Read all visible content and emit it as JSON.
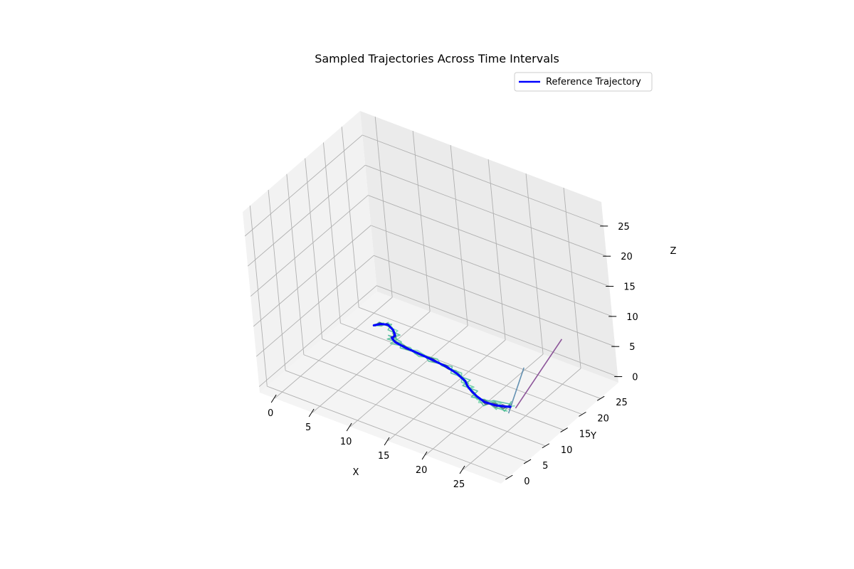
{
  "chart_data": {
    "type": "line3d",
    "title": "Sampled Trajectories Across Time Intervals",
    "xlabel": "X",
    "ylabel": "Y",
    "zlabel": "Z",
    "xlim": [
      -2,
      30
    ],
    "ylim": [
      -2,
      30
    ],
    "zlim": [
      -1,
      29
    ],
    "xticks": [
      0,
      5,
      10,
      15,
      20,
      25
    ],
    "yticks": [
      0,
      5,
      10,
      15,
      20,
      25
    ],
    "zticks": [
      0,
      5,
      10,
      15,
      20,
      25
    ],
    "grid": true,
    "legend": {
      "position": "top-right",
      "entries": [
        {
          "label": "Reference Trajectory",
          "color": "#0000ff"
        }
      ]
    },
    "reference": {
      "name": "Reference Trajectory",
      "color": "#0000ff",
      "x": [
        2.0,
        2.5,
        3.3,
        4.4,
        5.2,
        5.2,
        6.0,
        7.5,
        9.5,
        11.5,
        13.5,
        15.2,
        16.8,
        17.6,
        18.5,
        19.6,
        21.0,
        22.3,
        23.3,
        24.0
      ],
      "y": [
        21.0,
        21.8,
        22.2,
        21.4,
        20.3,
        19.4,
        18.7,
        18.3,
        18.0,
        17.7,
        17.3,
        16.6,
        15.6,
        14.6,
        13.8,
        13.0,
        12.3,
        12.4,
        12.8,
        13.2
      ],
      "z": [
        0.0,
        0.05,
        0.1,
        0.15,
        0.2,
        0.25,
        0.3,
        0.35,
        0.4,
        0.45,
        0.5,
        0.55,
        0.6,
        0.65,
        0.7,
        0.75,
        0.8,
        0.85,
        0.9,
        0.95
      ]
    },
    "samples": [
      {
        "color": "#55c89b",
        "offsets": [
          [
            0.0,
            0.0
          ],
          [
            0.3,
            -0.4
          ],
          [
            -0.2,
            0.5
          ],
          [
            0.4,
            -0.6
          ],
          [
            -0.5,
            0.3
          ],
          [
            0.6,
            0.2
          ],
          [
            -0.3,
            -0.7
          ],
          [
            0.5,
            0.4
          ],
          [
            -0.4,
            -0.3
          ],
          [
            0.3,
            0.6
          ],
          [
            -0.6,
            -0.2
          ],
          [
            0.4,
            0.5
          ],
          [
            -0.2,
            -0.6
          ],
          [
            0.7,
            0.3
          ],
          [
            -0.5,
            0.4
          ],
          [
            0.4,
            -0.7
          ],
          [
            -0.3,
            0.6
          ],
          [
            0.6,
            -0.8
          ],
          [
            -0.4,
            -0.9
          ],
          [
            0.2,
            -1.2
          ]
        ]
      },
      {
        "color": "#3fb596",
        "offsets": [
          [
            0.1,
            0.2
          ],
          [
            -0.3,
            0.3
          ],
          [
            0.4,
            -0.2
          ],
          [
            -0.4,
            0.5
          ],
          [
            0.3,
            -0.4
          ],
          [
            -0.6,
            0.3
          ],
          [
            0.5,
            0.6
          ],
          [
            -0.4,
            -0.5
          ],
          [
            0.6,
            0.2
          ],
          [
            -0.3,
            -0.6
          ],
          [
            0.5,
            0.5
          ],
          [
            -0.6,
            -0.4
          ],
          [
            0.4,
            0.6
          ],
          [
            -0.5,
            -0.3
          ],
          [
            0.6,
            0.5
          ],
          [
            -0.4,
            -0.6
          ],
          [
            0.5,
            0.7
          ],
          [
            -0.6,
            0.9
          ],
          [
            0.5,
            1.1
          ],
          [
            -0.3,
            0.8
          ]
        ]
      },
      {
        "color": "#6ad2a8",
        "offsets": [
          [
            -0.1,
            0.1
          ],
          [
            0.2,
            0.5
          ],
          [
            -0.4,
            -0.3
          ],
          [
            0.5,
            0.2
          ],
          [
            -0.3,
            0.6
          ],
          [
            0.4,
            -0.5
          ],
          [
            -0.6,
            0.4
          ],
          [
            0.3,
            -0.4
          ],
          [
            -0.5,
            0.6
          ],
          [
            0.6,
            -0.3
          ],
          [
            -0.4,
            0.4
          ],
          [
            0.5,
            -0.5
          ],
          [
            -0.6,
            0.3
          ],
          [
            0.4,
            -0.6
          ],
          [
            -0.3,
            0.5
          ],
          [
            0.6,
            -0.4
          ],
          [
            -0.5,
            -0.6
          ],
          [
            0.4,
            1.0
          ],
          [
            -0.6,
            -1.1
          ],
          [
            0.3,
            0.6
          ]
        ]
      },
      {
        "color": "#48b891",
        "offsets": [
          [
            0.2,
            -0.1
          ],
          [
            -0.2,
            -0.3
          ],
          [
            0.3,
            0.4
          ],
          [
            -0.5,
            -0.4
          ],
          [
            0.4,
            0.5
          ],
          [
            -0.3,
            -0.6
          ],
          [
            0.6,
            0.3
          ],
          [
            -0.5,
            0.5
          ],
          [
            0.3,
            -0.6
          ],
          [
            -0.6,
            0.4
          ],
          [
            0.5,
            -0.4
          ],
          [
            -0.4,
            0.6
          ],
          [
            0.6,
            -0.3
          ],
          [
            -0.5,
            0.5
          ],
          [
            0.4,
            -0.5
          ],
          [
            -0.6,
            0.6
          ],
          [
            0.3,
            -0.9
          ],
          [
            -0.4,
            0.8
          ],
          [
            0.6,
            -1.0
          ],
          [
            -0.5,
            1.3
          ]
        ]
      },
      {
        "color": "#555577",
        "offsets": [
          [
            0.0,
            0.1
          ],
          [
            0.2,
            -0.2
          ],
          [
            -0.2,
            0.2
          ],
          [
            0.2,
            -0.3
          ],
          [
            -0.3,
            0.2
          ],
          [
            0.3,
            -0.2
          ],
          [
            -0.2,
            0.3
          ],
          [
            0.3,
            -0.3
          ],
          [
            -0.3,
            0.2
          ],
          [
            0.2,
            -0.3
          ],
          [
            -0.2,
            0.3
          ],
          [
            0.3,
            -0.2
          ],
          [
            -0.3,
            0.3
          ],
          [
            0.2,
            -0.2
          ],
          [
            -0.2,
            0.3
          ],
          [
            0.3,
            -0.3
          ],
          [
            -0.2,
            0.4
          ],
          [
            0.3,
            -0.4
          ],
          [
            -0.3,
            0.3
          ],
          [
            0.2,
            -0.3
          ]
        ]
      },
      {
        "color": "#444466",
        "offsets": [
          [
            0.1,
            0.0
          ],
          [
            -0.2,
            0.2
          ],
          [
            0.2,
            -0.2
          ],
          [
            -0.3,
            0.2
          ],
          [
            0.2,
            -0.3
          ],
          [
            -0.2,
            0.2
          ],
          [
            0.3,
            -0.2
          ],
          [
            -0.3,
            0.3
          ],
          [
            0.2,
            -0.2
          ],
          [
            -0.2,
            0.3
          ],
          [
            0.3,
            -0.3
          ],
          [
            -0.2,
            0.2
          ],
          [
            0.3,
            -0.3
          ],
          [
            -0.3,
            0.2
          ],
          [
            0.2,
            -0.3
          ],
          [
            -0.3,
            0.3
          ],
          [
            0.3,
            -0.4
          ],
          [
            -0.2,
            0.4
          ],
          [
            0.2,
            -0.5
          ],
          [
            -0.2,
            0.4
          ]
        ]
      }
    ],
    "outliers": [
      {
        "color": "#7a3a8a",
        "x": [
          24.3,
          24.3
        ],
        "y": [
          13.9,
          27.2
        ],
        "z": [
          0.5,
          5.0
        ]
      },
      {
        "color": "#4a7fa6",
        "x": [
          24.2,
          20.8
        ],
        "y": [
          12.2,
          23.4
        ],
        "z": [
          0.5,
          0.6
        ]
      }
    ]
  }
}
